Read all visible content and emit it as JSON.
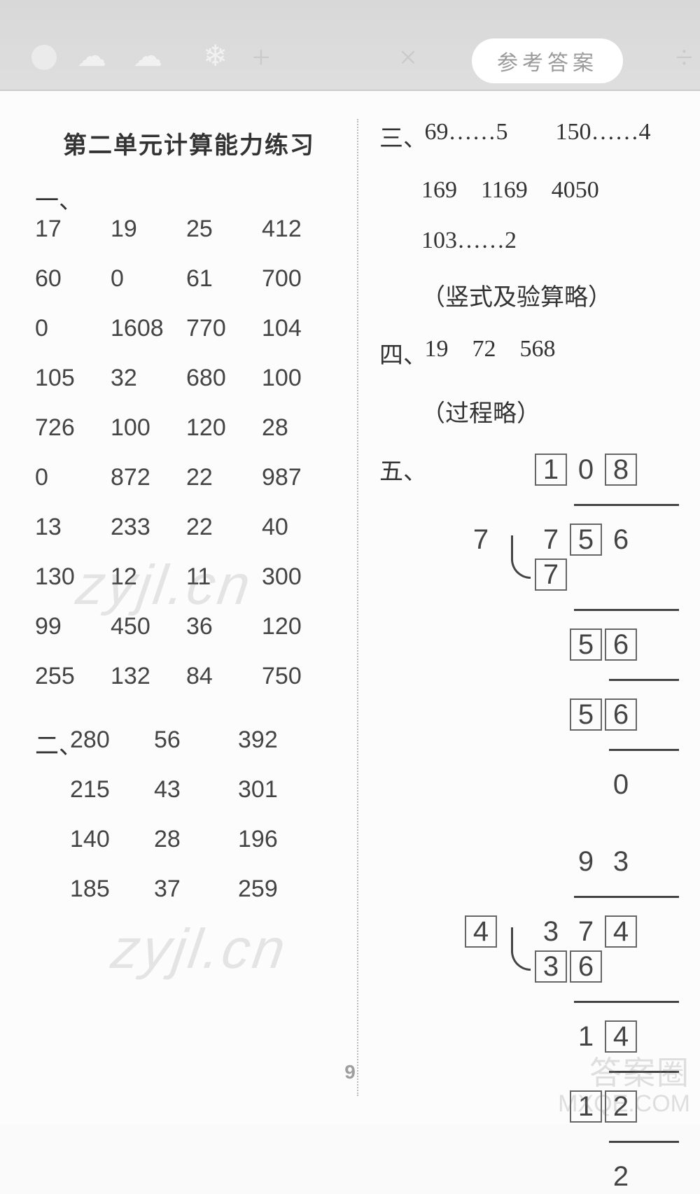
{
  "header": {
    "badge": "参考答案"
  },
  "title": "第二单元计算能力练习",
  "section1": {
    "label": "一、",
    "rows": [
      [
        "17",
        "19",
        "25",
        "412"
      ],
      [
        "60",
        "0",
        "61",
        "700"
      ],
      [
        "0",
        "1608",
        "770",
        "104"
      ],
      [
        "105",
        "32",
        "680",
        "100"
      ],
      [
        "726",
        "100",
        "120",
        "28"
      ],
      [
        "0",
        "872",
        "22",
        "987"
      ],
      [
        "13",
        "233",
        "22",
        "40"
      ],
      [
        "130",
        "12",
        "11",
        "300"
      ],
      [
        "99",
        "450",
        "36",
        "120"
      ],
      [
        "255",
        "132",
        "84",
        "750"
      ]
    ]
  },
  "section2": {
    "label": "二、",
    "rows": [
      [
        "280",
        "56",
        "392"
      ],
      [
        "215",
        "43",
        "301"
      ],
      [
        "140",
        "28",
        "196"
      ],
      [
        "185",
        "37",
        "259"
      ]
    ]
  },
  "section3": {
    "label": "三、",
    "line1": [
      "69……5",
      "150……4"
    ],
    "line2": [
      "169",
      "1169",
      "4050"
    ],
    "line3": "103……2",
    "note": "（竖式及验算略）"
  },
  "section4": {
    "label": "四、",
    "values": [
      "19",
      "72",
      "568"
    ],
    "note": "（过程略）"
  },
  "section5_label": "五、",
  "ldiv1": {
    "quotient": [
      "1",
      "0",
      "8"
    ],
    "divisor": "7",
    "dividend": [
      "7",
      "5",
      "6"
    ],
    "l1": [
      "7"
    ],
    "l2": [
      "5",
      "6"
    ],
    "l3": [
      "5",
      "6"
    ],
    "rem": "0",
    "boxes_q": [
      true,
      false,
      true
    ],
    "boxes_dv": [
      false,
      true,
      false
    ],
    "boxes_l1": [
      true
    ],
    "boxes_l2": [
      true,
      true
    ],
    "boxes_l3": [
      true,
      true
    ]
  },
  "ldiv2": {
    "quotient": [
      "9",
      "3"
    ],
    "divisor": "4",
    "dividend": [
      "3",
      "7",
      "4"
    ],
    "l1": [
      "3",
      "6"
    ],
    "l2": [
      "1",
      "4"
    ],
    "l3": [
      "1",
      "2"
    ],
    "rem": "2",
    "box_divisor": true,
    "boxes_q": [
      false,
      false
    ],
    "boxes_dv": [
      false,
      false,
      true
    ],
    "boxes_l1": [
      true,
      true
    ],
    "boxes_l2": [
      false,
      true
    ],
    "boxes_l3": [
      true,
      true
    ]
  },
  "page_number": "9",
  "watermarks": {
    "wm1": "zyjl.cn",
    "wm2": "zyjl.cn",
    "corner1": "答案圈",
    "corner2": "MXQE.COM"
  },
  "colors": {
    "text": "#444444",
    "muted": "#9a9a9a",
    "rule": "#444444",
    "bg": "#fcfcfc"
  }
}
